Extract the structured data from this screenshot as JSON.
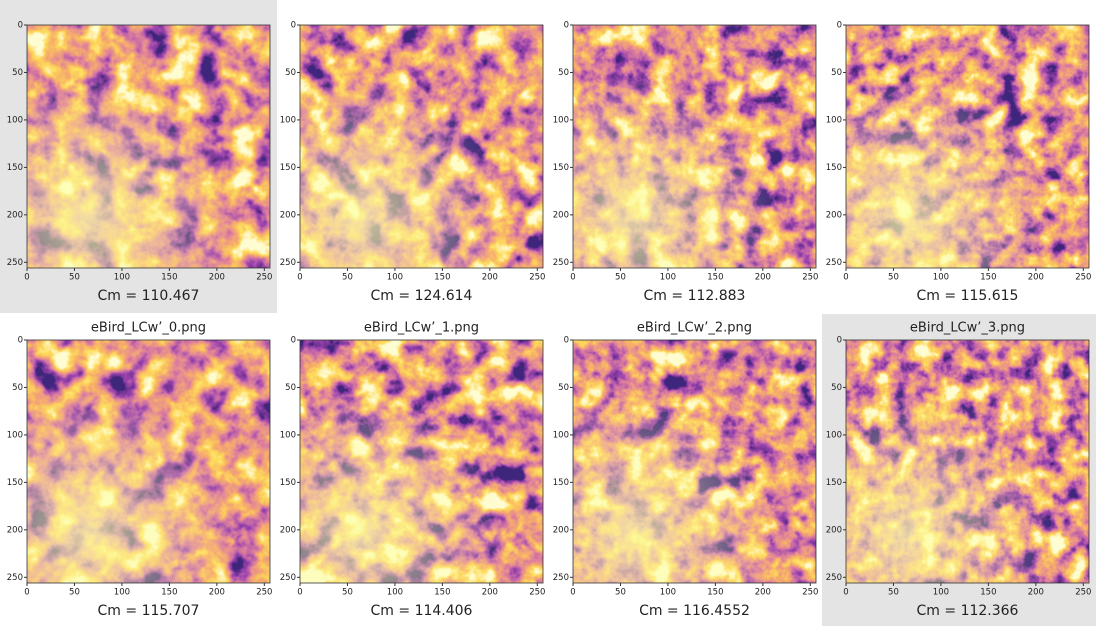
{
  "panels": [
    {
      "caption": "Cm = 110.467"
    },
    {
      "caption": "Cm = 124.614"
    },
    {
      "caption": "Cm = 112.883"
    },
    {
      "caption": "Cm = 115.615"
    },
    {
      "title": "eBird_LCw’_0.png",
      "caption": "Cm = 115.707"
    },
    {
      "title": "eBird_LCw’_1.png",
      "caption": "Cm = 114.406"
    },
    {
      "title": "eBird_LCw’_2.png",
      "caption": "Cm = 116.4552"
    },
    {
      "title": "eBird_LCw’_3.png",
      "caption": "Cm = 112.366"
    }
  ],
  "axis_ticks": [
    0,
    50,
    100,
    150,
    200,
    250
  ]
}
